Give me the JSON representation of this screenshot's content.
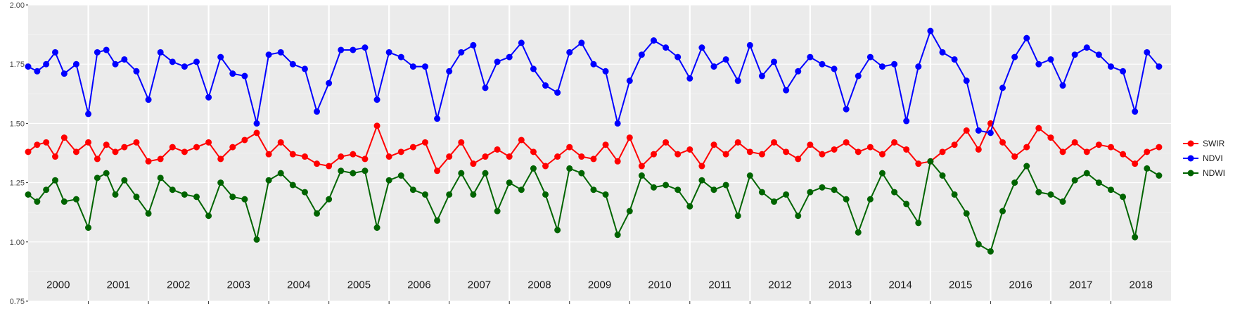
{
  "chart_data": {
    "type": "line",
    "title": "",
    "xlabel": "",
    "ylabel": "",
    "ylim": [
      0.75,
      2.0
    ],
    "yticks": [
      0.75,
      1.0,
      1.25,
      1.5,
      1.75,
      2.0
    ],
    "ytick_labels": [
      "0.75",
      "1.00",
      "1.25",
      "1.50",
      "1.75",
      "2.00"
    ],
    "xlim": [
      2000.0,
      2019.0
    ],
    "year_labels": [
      "2000",
      "2001",
      "2002",
      "2003",
      "2004",
      "2005",
      "2006",
      "2007",
      "2008",
      "2009",
      "2010",
      "2011",
      "2012",
      "2013",
      "2014",
      "2015",
      "2016",
      "2017",
      "2018"
    ],
    "grid": true,
    "legend": "right",
    "series": [
      {
        "name": "SWIR",
        "color": "#ff0000",
        "x": [
          2000.0,
          2000.15,
          2000.3,
          2000.45,
          2000.6,
          2000.8,
          2001.0,
          2001.15,
          2001.3,
          2001.45,
          2001.6,
          2001.8,
          2002.0,
          2002.2,
          2002.4,
          2002.6,
          2002.8,
          2003.0,
          2003.2,
          2003.4,
          2003.6,
          2003.8,
          2004.0,
          2004.2,
          2004.4,
          2004.6,
          2004.8,
          2005.0,
          2005.2,
          2005.4,
          2005.6,
          2005.8,
          2006.0,
          2006.2,
          2006.4,
          2006.6,
          2006.8,
          2007.0,
          2007.2,
          2007.4,
          2007.6,
          2007.8,
          2008.0,
          2008.2,
          2008.4,
          2008.6,
          2008.8,
          2009.0,
          2009.2,
          2009.4,
          2009.6,
          2009.8,
          2010.0,
          2010.2,
          2010.4,
          2010.6,
          2010.8,
          2011.0,
          2011.2,
          2011.4,
          2011.6,
          2011.8,
          2012.0,
          2012.2,
          2012.4,
          2012.6,
          2012.8,
          2013.0,
          2013.2,
          2013.4,
          2013.6,
          2013.8,
          2014.0,
          2014.2,
          2014.4,
          2014.6,
          2014.8,
          2015.0,
          2015.2,
          2015.4,
          2015.6,
          2015.8,
          2016.0,
          2016.2,
          2016.4,
          2016.6,
          2016.8,
          2017.0,
          2017.2,
          2017.4,
          2017.6,
          2017.8,
          2018.0,
          2018.2,
          2018.4,
          2018.6,
          2018.8
        ],
        "values": [
          1.38,
          1.41,
          1.42,
          1.36,
          1.44,
          1.38,
          1.42,
          1.35,
          1.41,
          1.38,
          1.4,
          1.42,
          1.34,
          1.35,
          1.4,
          1.38,
          1.4,
          1.42,
          1.35,
          1.4,
          1.43,
          1.46,
          1.37,
          1.42,
          1.37,
          1.36,
          1.33,
          1.32,
          1.36,
          1.37,
          1.35,
          1.49,
          1.36,
          1.38,
          1.4,
          1.42,
          1.3,
          1.36,
          1.42,
          1.33,
          1.36,
          1.39,
          1.36,
          1.43,
          1.38,
          1.32,
          1.36,
          1.4,
          1.36,
          1.35,
          1.41,
          1.34,
          1.44,
          1.32,
          1.37,
          1.42,
          1.37,
          1.39,
          1.32,
          1.41,
          1.37,
          1.42,
          1.38,
          1.37,
          1.42,
          1.38,
          1.35,
          1.41,
          1.37,
          1.39,
          1.42,
          1.38,
          1.4,
          1.37,
          1.42,
          1.39,
          1.33,
          1.34,
          1.38,
          1.41,
          1.47,
          1.39,
          1.5,
          1.42,
          1.36,
          1.4,
          1.48,
          1.44,
          1.38,
          1.42,
          1.38,
          1.41,
          1.4,
          1.37,
          1.33,
          1.38,
          1.4
        ]
      },
      {
        "name": "NDVI",
        "color": "#0000ff",
        "x": [
          2000.0,
          2000.15,
          2000.3,
          2000.45,
          2000.6,
          2000.8,
          2001.0,
          2001.15,
          2001.3,
          2001.45,
          2001.6,
          2001.8,
          2002.0,
          2002.2,
          2002.4,
          2002.6,
          2002.8,
          2003.0,
          2003.2,
          2003.4,
          2003.6,
          2003.8,
          2004.0,
          2004.2,
          2004.4,
          2004.6,
          2004.8,
          2005.0,
          2005.2,
          2005.4,
          2005.6,
          2005.8,
          2006.0,
          2006.2,
          2006.4,
          2006.6,
          2006.8,
          2007.0,
          2007.2,
          2007.4,
          2007.6,
          2007.8,
          2008.0,
          2008.2,
          2008.4,
          2008.6,
          2008.8,
          2009.0,
          2009.2,
          2009.4,
          2009.6,
          2009.8,
          2010.0,
          2010.2,
          2010.4,
          2010.6,
          2010.8,
          2011.0,
          2011.2,
          2011.4,
          2011.6,
          2011.8,
          2012.0,
          2012.2,
          2012.4,
          2012.6,
          2012.8,
          2013.0,
          2013.2,
          2013.4,
          2013.6,
          2013.8,
          2014.0,
          2014.2,
          2014.4,
          2014.6,
          2014.8,
          2015.0,
          2015.2,
          2015.4,
          2015.6,
          2015.8,
          2016.0,
          2016.2,
          2016.4,
          2016.6,
          2016.8,
          2017.0,
          2017.2,
          2017.4,
          2017.6,
          2017.8,
          2018.0,
          2018.2,
          2018.4,
          2018.6,
          2018.8
        ],
        "values": [
          1.74,
          1.72,
          1.75,
          1.8,
          1.71,
          1.75,
          1.54,
          1.8,
          1.81,
          1.75,
          1.77,
          1.72,
          1.6,
          1.8,
          1.76,
          1.74,
          1.76,
          1.61,
          1.78,
          1.71,
          1.7,
          1.5,
          1.79,
          1.8,
          1.75,
          1.73,
          1.55,
          1.67,
          1.81,
          1.81,
          1.82,
          1.6,
          1.8,
          1.78,
          1.74,
          1.74,
          1.52,
          1.72,
          1.8,
          1.83,
          1.65,
          1.76,
          1.78,
          1.84,
          1.73,
          1.66,
          1.63,
          1.8,
          1.84,
          1.75,
          1.72,
          1.5,
          1.68,
          1.79,
          1.85,
          1.82,
          1.78,
          1.69,
          1.82,
          1.74,
          1.77,
          1.68,
          1.83,
          1.7,
          1.76,
          1.64,
          1.72,
          1.78,
          1.75,
          1.73,
          1.56,
          1.7,
          1.78,
          1.74,
          1.75,
          1.51,
          1.74,
          1.89,
          1.8,
          1.77,
          1.68,
          1.47,
          1.46,
          1.65,
          1.78,
          1.86,
          1.75,
          1.77,
          1.66,
          1.79,
          1.82,
          1.79,
          1.74,
          1.72,
          1.55,
          1.8,
          1.74
        ]
      },
      {
        "name": "NDWI",
        "color": "#006400",
        "x": [
          2000.0,
          2000.15,
          2000.3,
          2000.45,
          2000.6,
          2000.8,
          2001.0,
          2001.15,
          2001.3,
          2001.45,
          2001.6,
          2001.8,
          2002.0,
          2002.2,
          2002.4,
          2002.6,
          2002.8,
          2003.0,
          2003.2,
          2003.4,
          2003.6,
          2003.8,
          2004.0,
          2004.2,
          2004.4,
          2004.6,
          2004.8,
          2005.0,
          2005.2,
          2005.4,
          2005.6,
          2005.8,
          2006.0,
          2006.2,
          2006.4,
          2006.6,
          2006.8,
          2007.0,
          2007.2,
          2007.4,
          2007.6,
          2007.8,
          2008.0,
          2008.2,
          2008.4,
          2008.6,
          2008.8,
          2009.0,
          2009.2,
          2009.4,
          2009.6,
          2009.8,
          2010.0,
          2010.2,
          2010.4,
          2010.6,
          2010.8,
          2011.0,
          2011.2,
          2011.4,
          2011.6,
          2011.8,
          2012.0,
          2012.2,
          2012.4,
          2012.6,
          2012.8,
          2013.0,
          2013.2,
          2013.4,
          2013.6,
          2013.8,
          2014.0,
          2014.2,
          2014.4,
          2014.6,
          2014.8,
          2015.0,
          2015.2,
          2015.4,
          2015.6,
          2015.8,
          2016.0,
          2016.2,
          2016.4,
          2016.6,
          2016.8,
          2017.0,
          2017.2,
          2017.4,
          2017.6,
          2017.8,
          2018.0,
          2018.2,
          2018.4,
          2018.6,
          2018.8
        ],
        "values": [
          1.2,
          1.17,
          1.22,
          1.26,
          1.17,
          1.18,
          1.06,
          1.27,
          1.29,
          1.2,
          1.26,
          1.19,
          1.12,
          1.27,
          1.22,
          1.2,
          1.19,
          1.11,
          1.25,
          1.19,
          1.18,
          1.01,
          1.26,
          1.29,
          1.24,
          1.21,
          1.12,
          1.18,
          1.3,
          1.29,
          1.3,
          1.06,
          1.26,
          1.28,
          1.22,
          1.2,
          1.09,
          1.2,
          1.29,
          1.2,
          1.29,
          1.13,
          1.25,
          1.22,
          1.31,
          1.2,
          1.05,
          1.31,
          1.29,
          1.22,
          1.2,
          1.03,
          1.13,
          1.28,
          1.23,
          1.24,
          1.22,
          1.15,
          1.26,
          1.22,
          1.24,
          1.11,
          1.28,
          1.21,
          1.17,
          1.2,
          1.11,
          1.21,
          1.23,
          1.22,
          1.18,
          1.04,
          1.18,
          1.29,
          1.21,
          1.16,
          1.08,
          1.34,
          1.28,
          1.2,
          1.12,
          0.99,
          0.96,
          1.13,
          1.25,
          1.32,
          1.21,
          1.2,
          1.17,
          1.26,
          1.29,
          1.25,
          1.22,
          1.19,
          1.02,
          1.31,
          1.28
        ]
      }
    ]
  }
}
